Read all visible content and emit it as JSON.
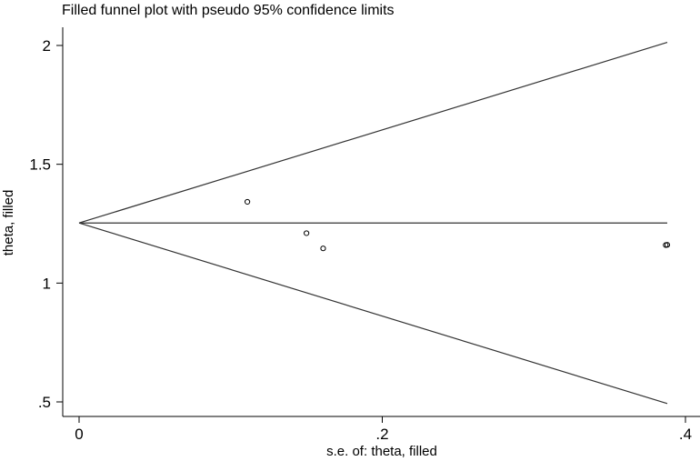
{
  "chart_data": {
    "type": "scatter",
    "title": "Filled funnel plot with pseudo 95% confidence limits",
    "xlabel": "s.e. of: theta, filled",
    "ylabel": "theta, filled",
    "xlim": [
      0,
      0.4
    ],
    "ylim": [
      0.5,
      2
    ],
    "x_ticks": [
      {
        "value": 0,
        "label": "0"
      },
      {
        "value": 0.2,
        "label": ".2"
      },
      {
        "value": 0.4,
        "label": ".4"
      }
    ],
    "y_ticks": [
      {
        "value": 0.5,
        "label": ".5"
      },
      {
        "value": 1,
        "label": "1"
      },
      {
        "value": 1.5,
        "label": "1.5"
      },
      {
        "value": 2,
        "label": "2"
      }
    ],
    "pooled_estimate": 1.253,
    "max_se": 0.388,
    "funnel_limits": {
      "upper": [
        [
          0,
          1.253
        ],
        [
          0.388,
          2.013
        ]
      ],
      "lower": [
        [
          0,
          1.253
        ],
        [
          0.388,
          0.493
        ]
      ]
    },
    "points": [
      {
        "x": 0.111,
        "y": 1.342
      },
      {
        "x": 0.15,
        "y": 1.21
      },
      {
        "x": 0.161,
        "y": 1.146
      },
      {
        "x": 0.387,
        "y": 1.16
      },
      {
        "x": 0.388,
        "y": 1.161
      }
    ],
    "grid": false,
    "colors": {
      "line": "#333333",
      "marker": "#000000",
      "background": "#ffffff"
    }
  }
}
